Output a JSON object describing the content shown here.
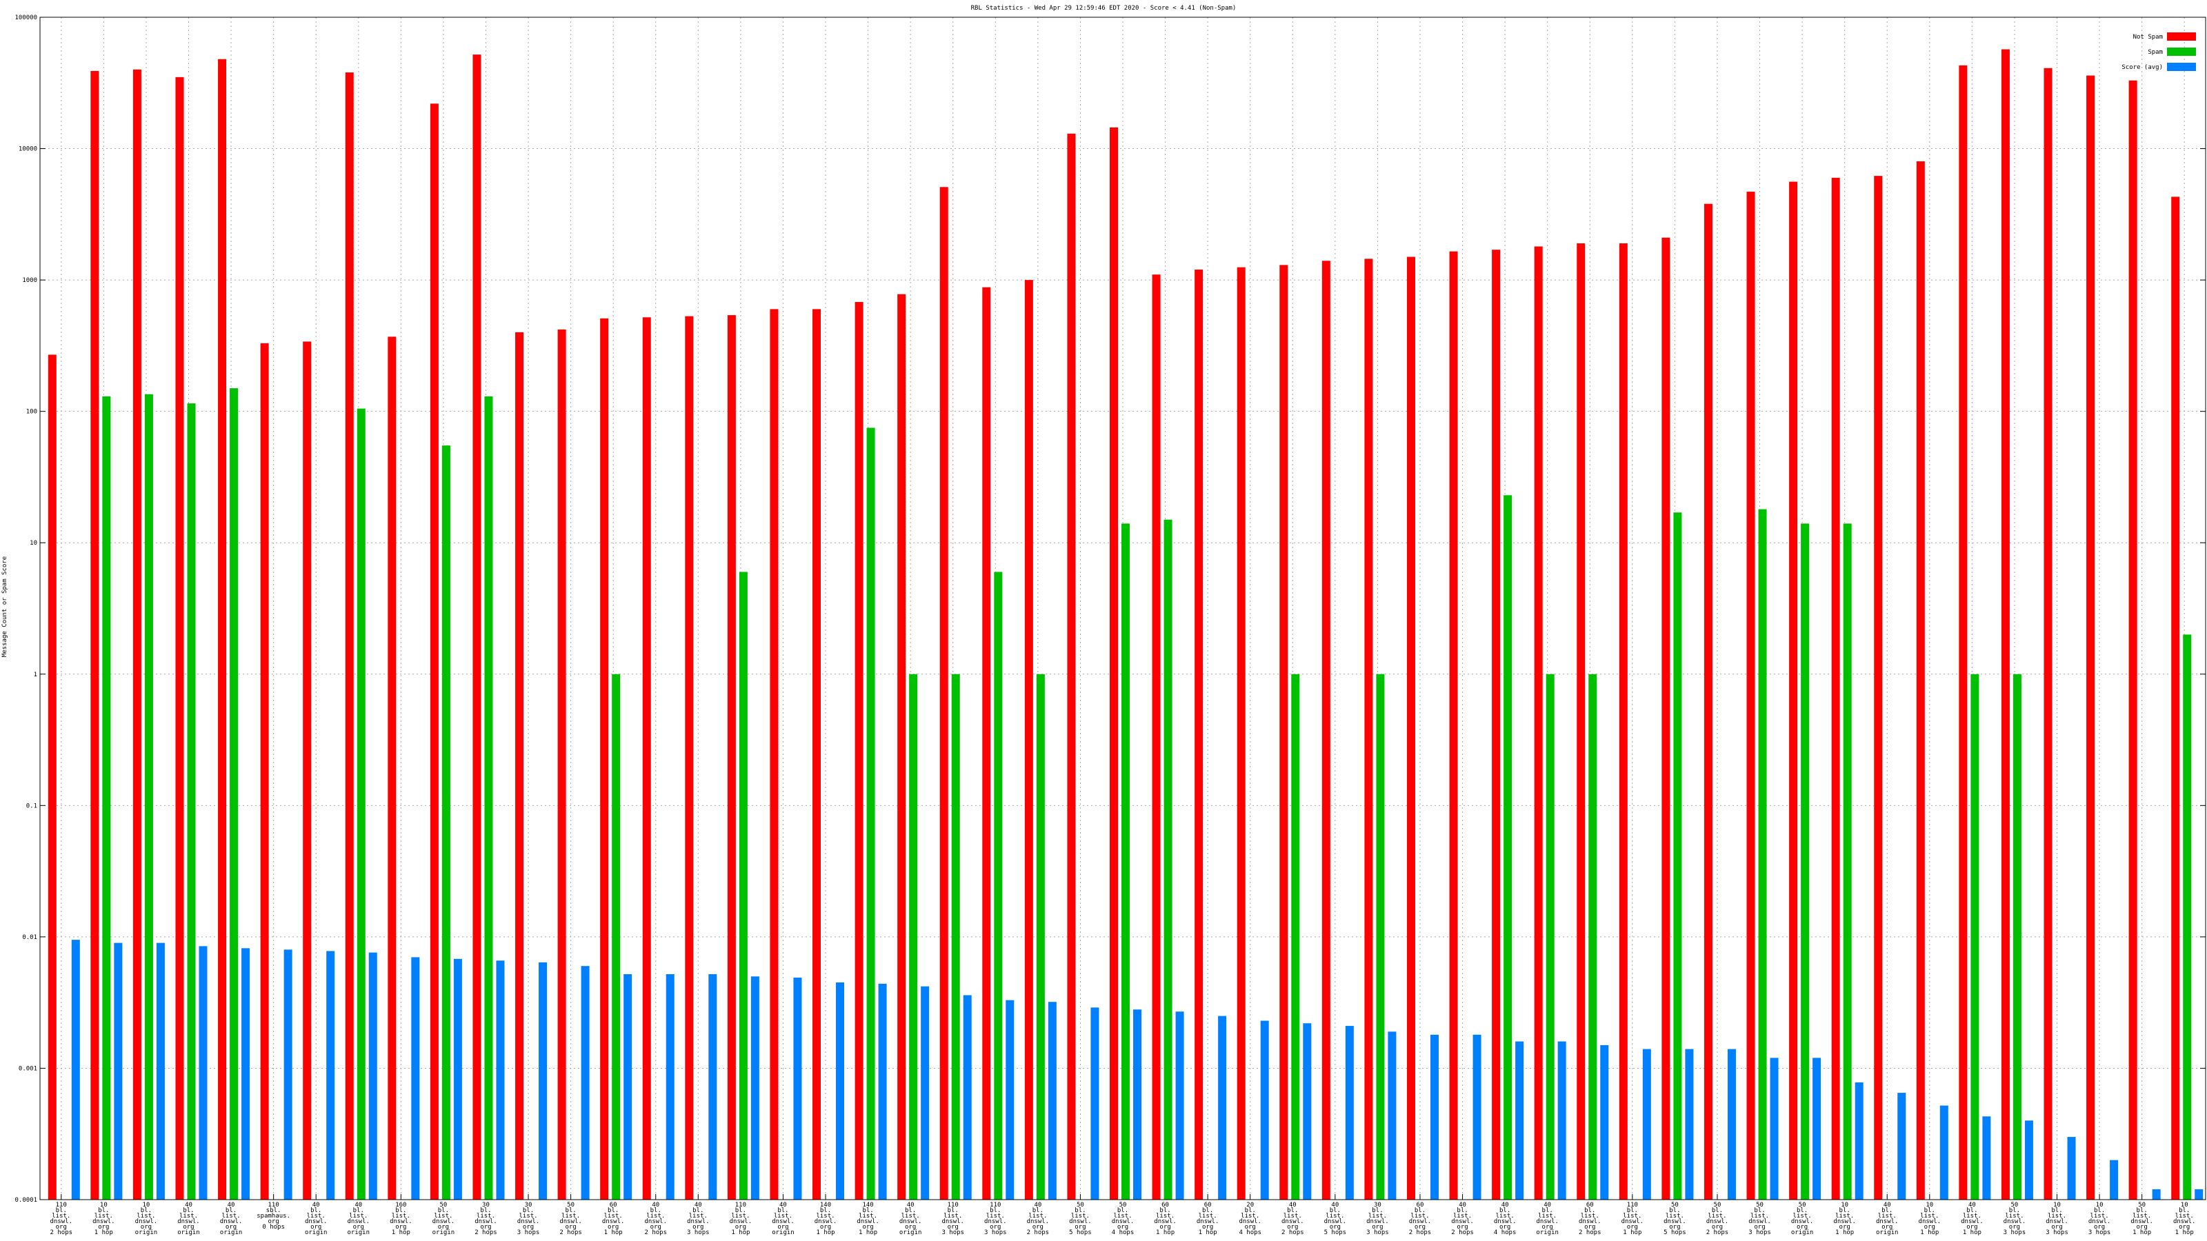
{
  "chart_data": {
    "type": "bar",
    "title": "RBL Statistics - Wed Apr 29 12:59:46 EDT 2020 - Score < 4.41 (Non-Spam)",
    "ylabel": "Message Count or Spam Score",
    "xlabel": "",
    "yscale": "log",
    "ylim": [
      0.0001,
      100000
    ],
    "yticks": [
      "0.0001",
      "0.001",
      "0.01",
      "0.1",
      "1",
      "10",
      "100",
      "1000",
      "10000",
      "100000"
    ],
    "grid": true,
    "legend_position": "top-right",
    "colors": {
      "Not Spam": "#ff0000",
      "Spam": "#00c000",
      "Score (avg)": "#0080ff"
    },
    "categories": [
      [
        "110",
        "bl.",
        "list.",
        "dnswl.",
        "org",
        "2 hops"
      ],
      [
        "10",
        "bl.",
        "list.",
        "dnswl.",
        "org",
        "1 hop"
      ],
      [
        "10",
        "bl.",
        "list.",
        "dnswl.",
        "org",
        "origin"
      ],
      [
        "40",
        "bl.",
        "list.",
        "dnswl.",
        "org",
        "origin"
      ],
      [
        "40",
        "bl.",
        "list.",
        "dnswl.",
        "org",
        "origin"
      ],
      [
        "110",
        "sbl.",
        "spamhaus.",
        "org",
        "0 hops"
      ],
      [
        "40",
        "bl.",
        "list.",
        "dnswl.",
        "org",
        "origin"
      ],
      [
        "40",
        "bl.",
        "list.",
        "dnswl.",
        "org",
        "origin"
      ],
      [
        "160",
        "bl.",
        "list.",
        "dnswl.",
        "org",
        "1 hop"
      ],
      [
        "50",
        "bl.",
        "list.",
        "dnswl.",
        "org",
        "origin"
      ],
      [
        "30",
        "bl.",
        "list.",
        "dnswl.",
        "org",
        "2 hops"
      ],
      [
        "30",
        "bl.",
        "list.",
        "dnswl.",
        "org",
        "3 hops"
      ],
      [
        "50",
        "bl.",
        "list.",
        "dnswl.",
        "org",
        "2 hops"
      ],
      [
        "60",
        "bl.",
        "list.",
        "dnswl.",
        "org",
        "1 hop"
      ],
      [
        "40",
        "bl.",
        "list.",
        "dnswl.",
        "org",
        "2 hops"
      ],
      [
        "40",
        "bl.",
        "list.",
        "dnswl.",
        "org",
        "3 hops"
      ],
      [
        "110",
        "bl.",
        "list.",
        "dnswl.",
        "org",
        "1 hop"
      ],
      [
        "40",
        "bl.",
        "list.",
        "dnswl.",
        "org",
        "origin"
      ],
      [
        "140",
        "bl.",
        "list.",
        "dnswl.",
        "org",
        "1 hop"
      ],
      [
        "140",
        "bl.",
        "list.",
        "dnswl.",
        "org",
        "1 hop"
      ],
      [
        "40",
        "bl.",
        "list.",
        "dnswl.",
        "org",
        "origin"
      ],
      [
        "110",
        "bl.",
        "list.",
        "dnswl.",
        "org",
        "3 hops"
      ],
      [
        "110",
        "bl.",
        "list.",
        "dnswl.",
        "org",
        "3 hops"
      ],
      [
        "40",
        "bl.",
        "list.",
        "dnswl.",
        "org",
        "2 hops"
      ],
      [
        "50",
        "bl.",
        "list.",
        "dnswl.",
        "org",
        "5 hops"
      ],
      [
        "50",
        "bl.",
        "list.",
        "dnswl.",
        "org",
        "4 hops"
      ],
      [
        "60",
        "bl.",
        "list.",
        "dnswl.",
        "org",
        "1 hop"
      ],
      [
        "60",
        "bl.",
        "list.",
        "dnswl.",
        "org",
        "1 hop"
      ],
      [
        "20",
        "bl.",
        "list.",
        "dnswl.",
        "org",
        "4 hops"
      ],
      [
        "40",
        "bl.",
        "list.",
        "dnswl.",
        "org",
        "2 hops"
      ],
      [
        "40",
        "bl.",
        "list.",
        "dnswl.",
        "org",
        "5 hops"
      ],
      [
        "30",
        "bl.",
        "list.",
        "dnswl.",
        "org",
        "3 hops"
      ],
      [
        "60",
        "bl.",
        "list.",
        "dnswl.",
        "org",
        "2 hops"
      ],
      [
        "40",
        "bl.",
        "list.",
        "dnswl.",
        "org",
        "2 hops"
      ],
      [
        "40",
        "bl.",
        "list.",
        "dnswl.",
        "org",
        "4 hops"
      ],
      [
        "40",
        "bl.",
        "list.",
        "dnswl.",
        "org",
        "origin"
      ],
      [
        "60",
        "bl.",
        "list.",
        "dnswl.",
        "org",
        "2 hops"
      ],
      [
        "110",
        "bl.",
        "list.",
        "dnswl.",
        "org",
        "1 hop"
      ],
      [
        "50",
        "bl.",
        "list.",
        "dnswl.",
        "org",
        "5 hops"
      ],
      [
        "50",
        "bl.",
        "list.",
        "dnswl.",
        "org",
        "2 hops"
      ],
      [
        "50",
        "bl.",
        "list.",
        "dnswl.",
        "org",
        "3 hops"
      ],
      [
        "50",
        "bl.",
        "list.",
        "dnswl.",
        "org",
        "origin"
      ],
      [
        "10",
        "bl.",
        "list.",
        "dnswl.",
        "org",
        "1 hop"
      ],
      [
        "40",
        "bl.",
        "list.",
        "dnswl.",
        "org",
        "origin"
      ],
      [
        "10",
        "bl.",
        "list.",
        "dnswl.",
        "org",
        "1 hop"
      ],
      [
        "40",
        "bl.",
        "list.",
        "dnswl.",
        "org",
        "1 hop"
      ],
      [
        "50",
        "bl.",
        "list.",
        "dnswl.",
        "org",
        "3 hops"
      ],
      [
        "10",
        "bl.",
        "list.",
        "dnswl.",
        "org",
        "3 hops"
      ],
      [
        "10",
        "bl.",
        "list.",
        "dnswl.",
        "org",
        "3 hops"
      ],
      [
        "50",
        "bl.",
        "list.",
        "dnswl.",
        "org",
        "1 hop"
      ],
      [
        "10",
        "bl.",
        "list.",
        "dnswl.",
        "org",
        "1 hop"
      ]
    ],
    "series": [
      {
        "name": "Not Spam",
        "values": [
          270,
          39000,
          40000,
          35000,
          48000,
          330,
          340,
          38000,
          370,
          22000,
          52000,
          400,
          420,
          510,
          520,
          530,
          540,
          600,
          600,
          680,
          780,
          5100,
          880,
          1000,
          13000,
          14500,
          1100,
          1200,
          1250,
          1300,
          1400,
          1450,
          1500,
          1650,
          1700,
          1800,
          1900,
          1900,
          2100,
          3800,
          4700,
          5600,
          6000,
          6200,
          8000,
          43000,
          57000,
          41000,
          36000,
          33000,
          4300
        ]
      },
      {
        "name": "Spam",
        "values": [
          null,
          130,
          135,
          115,
          150,
          null,
          null,
          105,
          null,
          55,
          130,
          null,
          null,
          1,
          null,
          null,
          6,
          null,
          null,
          75,
          1,
          1,
          6,
          1,
          null,
          14,
          15,
          null,
          null,
          1,
          null,
          1,
          null,
          null,
          23,
          1,
          1,
          null,
          17,
          null,
          18,
          14,
          14,
          null,
          null,
          1,
          1,
          null,
          null,
          null,
          2
        ]
      },
      {
        "name": "Score (avg)",
        "values": [
          0.0095,
          0.009,
          0.009,
          0.0085,
          0.0082,
          0.008,
          0.0078,
          0.0076,
          0.007,
          0.0068,
          0.0066,
          0.0064,
          0.006,
          0.0052,
          0.0052,
          0.0052,
          0.005,
          0.0049,
          0.0045,
          0.0044,
          0.0042,
          0.0036,
          0.0033,
          0.0032,
          0.0029,
          0.0028,
          0.0027,
          0.0025,
          0.0023,
          0.0022,
          0.0021,
          0.0019,
          0.0018,
          0.0018,
          0.0016,
          0.0016,
          0.0015,
          0.0014,
          0.0014,
          0.0014,
          0.0012,
          0.0012,
          0.00078,
          0.00065,
          0.00052,
          0.00043,
          0.0004,
          0.0003,
          0.0002,
          0.00012,
          0.00012
        ]
      }
    ]
  }
}
